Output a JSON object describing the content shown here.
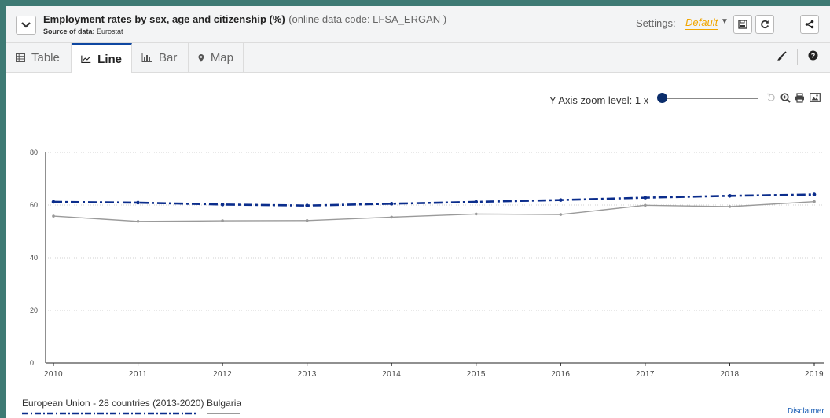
{
  "header": {
    "title": "Employment rates by sex, age and citizenship (%)",
    "code": "(online data code: LFSA_ERGAN )",
    "source_label": "Source of data:",
    "source_value": "Eurostat"
  },
  "settings": {
    "label": "Settings:",
    "value": "Default"
  },
  "tabs": [
    {
      "label": "Table",
      "icon": "table-icon"
    },
    {
      "label": "Line",
      "icon": "line-chart-icon"
    },
    {
      "label": "Bar",
      "icon": "bar-chart-icon"
    },
    {
      "label": "Map",
      "icon": "map-marker-icon"
    }
  ],
  "zoom": {
    "label": "Y Axis zoom level: 1 x",
    "level": 1
  },
  "disclaimer": "Disclaimer",
  "colors": {
    "eu": "#0b2d8c",
    "bg": "#9a9a9a",
    "accent": "#f0a500",
    "tab_active": "#0e47a1"
  },
  "chart_data": {
    "type": "line",
    "x": [
      2010,
      2011,
      2012,
      2013,
      2014,
      2015,
      2016,
      2017,
      2018,
      2019
    ],
    "ylim": [
      0,
      80
    ],
    "yticks": [
      0,
      20,
      40,
      60,
      80
    ],
    "grid": true,
    "legend_position": "bottom-left",
    "series": [
      {
        "name": "European Union - 28 countries (2013-2020)",
        "values": [
          61.2,
          60.9,
          60.2,
          59.8,
          60.5,
          61.2,
          61.9,
          62.8,
          63.5,
          64.0
        ],
        "style": "dash-dot",
        "color": "#0b2d8c"
      },
      {
        "name": "Bulgaria",
        "values": [
          55.8,
          53.8,
          54.0,
          54.1,
          55.4,
          56.6,
          56.4,
          59.9,
          59.4,
          61.3
        ],
        "style": "solid",
        "color": "#9a9a9a"
      }
    ]
  }
}
